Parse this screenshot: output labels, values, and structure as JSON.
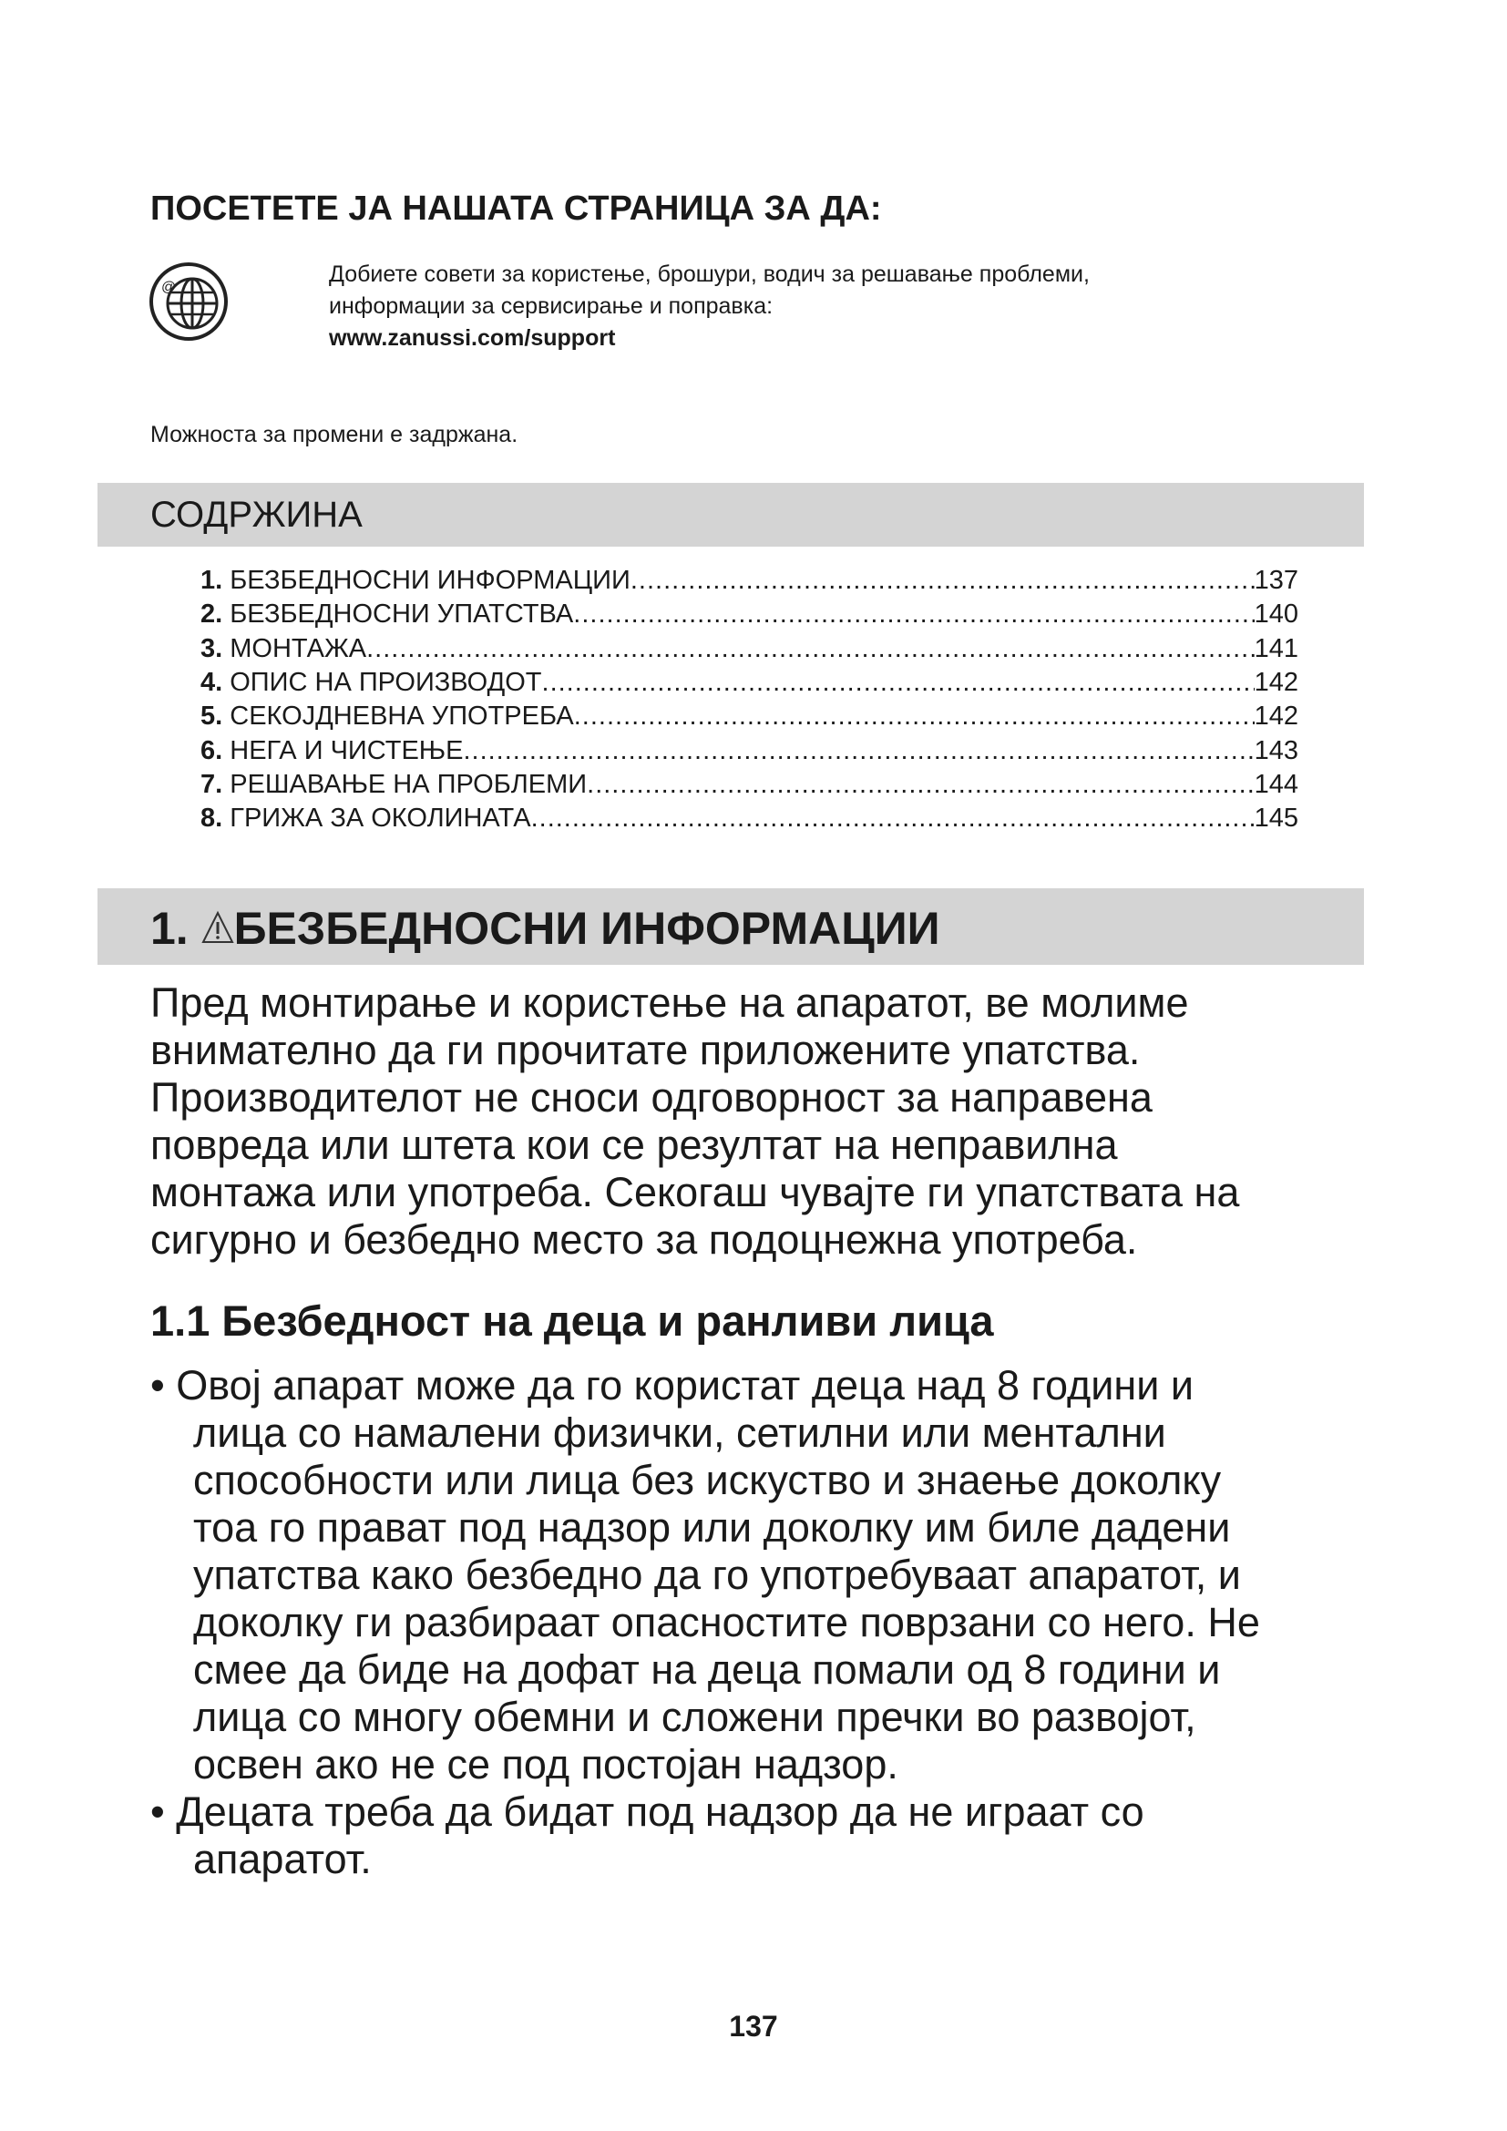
{
  "visit": {
    "title": "ПОСЕТЕТЕ ЈА НАШАТА СТРАНИЦА ЗА ДА:",
    "icon": "globe-web-icon",
    "lines": [
      "Добиете совети за користење, брошури, водич за решавање проблеми,",
      "информации за сервисирање и поправка:"
    ],
    "url": "www.zanussi.com/support"
  },
  "note": "Можноста за промени е задржана.",
  "toc": {
    "title": "СОДРЖИНА",
    "items": [
      {
        "num": "1.",
        "label": "БЕЗБЕДНОСНИ ИНФОРМАЦИИ",
        "page": "137"
      },
      {
        "num": "2.",
        "label": "БЕЗБЕДНОСНИ УПАТСТВА",
        "page": "140"
      },
      {
        "num": "3.",
        "label": "МОНТАЖА",
        "page": "141"
      },
      {
        "num": "4.",
        "label": "ОПИС НА ПРОИЗВОДОТ",
        "page": "142"
      },
      {
        "num": "5.",
        "label": "СЕКОЈДНЕВНА УПОТРЕБА",
        "page": " 142"
      },
      {
        "num": "6.",
        "label": "НЕГА И ЧИСТЕЊЕ",
        "page": "143"
      },
      {
        "num": "7.",
        "label": "РЕШАВАЊЕ НА ПРОБЛЕМИ",
        "page": " 144"
      },
      {
        "num": "8.",
        "label": "ГРИЖА ЗА ОКОЛИНАТА",
        "page": "145"
      }
    ]
  },
  "section": {
    "num": "1. ",
    "title": "БЕЗБЕДНОСНИ ИНФОРМАЦИИ",
    "icon": "warning-triangle-icon",
    "intro": [
      "Пред монтирање и користење на апаратот, ве молиме",
      "внимателно да ги прочитате приложените упатства.",
      "Производителот не сноси одговорност за направена",
      "повреда или штета кои се резултат на неправилна",
      "монтажа или употреба. Секогаш чувајте ги упатствата на",
      "сигурно и безбедно место за подоцнежна употреба."
    ],
    "subtitle": "1.1 Безбедност на деца и ранливи лица",
    "bullets": [
      [
        "Овој апарат може да го користат деца над 8 години и",
        "лица со намалени физички, сетилни или ментални",
        "способности или лица без искуство и знаење доколку",
        "тоа го прават под надзор или доколку им биле дадени",
        "упатства како безбедно да го употребуваат апаратот, и",
        "доколку ги разбираат опасностите поврзани со него. Не",
        "смее да биде на дофат на деца помали од 8 години и",
        "лица со многу обемни и сложени пречки во развојот,",
        "освен ако не се под постојан надзор."
      ],
      [
        "Децата треба да бидат под надзор да не играат со",
        "апаратот."
      ]
    ]
  },
  "page_number": "137"
}
